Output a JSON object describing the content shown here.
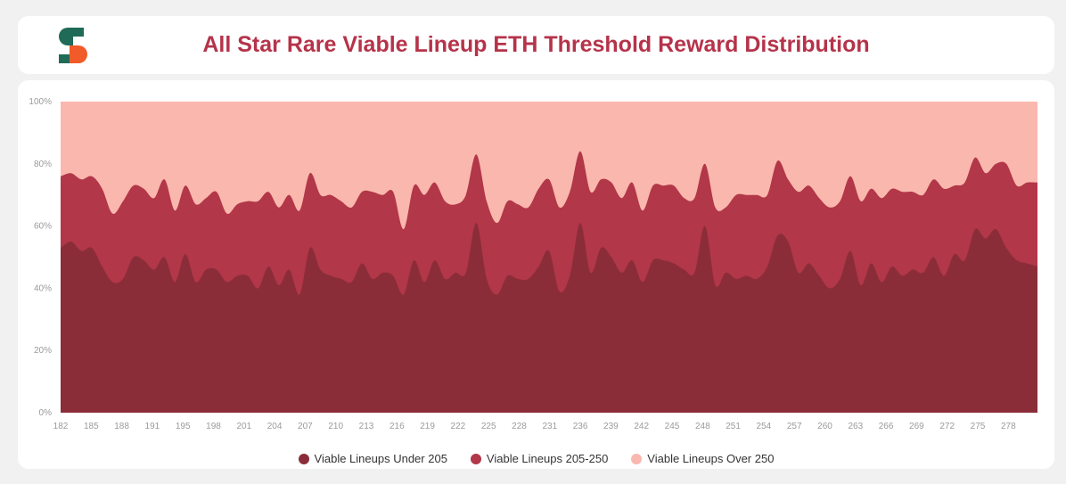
{
  "header": {
    "title": "All Star Rare Viable Lineup ETH Threshold Reward Distribution"
  },
  "chart_data": {
    "type": "area",
    "stacked": true,
    "title": "All Star Rare Viable Lineup ETH Threshold Reward Distribution",
    "xlabel": "",
    "ylabel": "",
    "ylim": [
      0,
      100
    ],
    "y_ticks": [
      "0%",
      "20%",
      "40%",
      "60%",
      "80%",
      "100%"
    ],
    "x_tick_labels": [
      "182",
      "185",
      "188",
      "191",
      "195",
      "198",
      "201",
      "204",
      "207",
      "210",
      "213",
      "216",
      "219",
      "222",
      "225",
      "228",
      "231",
      "236",
      "239",
      "242",
      "245",
      "248",
      "251",
      "254",
      "257",
      "260",
      "263",
      "266",
      "269",
      "272",
      "275",
      "278"
    ],
    "grid": false,
    "legend_position": "bottom",
    "series": [
      {
        "name": "Viable Lineups Under 205",
        "color": "#8b2d39",
        "values": [
          53,
          55,
          52,
          53,
          47,
          42,
          43,
          50,
          49,
          46,
          50,
          42,
          51,
          42,
          46,
          46,
          42,
          44,
          44,
          40,
          47,
          41,
          46,
          38,
          53,
          46,
          44,
          43,
          42,
          48,
          43,
          45,
          44,
          38,
          49,
          42,
          49,
          43,
          45,
          45,
          61,
          43,
          38,
          44,
          43,
          43,
          47,
          52,
          39,
          44,
          61,
          45,
          53,
          50,
          45,
          49,
          42,
          49,
          49,
          48,
          46,
          45,
          60,
          41,
          45,
          43,
          44,
          43,
          47,
          57,
          55,
          45,
          48,
          44,
          40,
          43,
          52,
          41,
          48,
          42,
          47,
          44,
          46,
          45,
          50,
          44,
          51,
          49,
          59,
          56,
          59,
          53,
          49,
          48,
          47
        ]
      },
      {
        "name": "Viable Lineups 205-250",
        "color": "#b23748",
        "values": [
          23,
          22,
          23,
          23,
          25,
          22,
          25,
          23,
          23,
          23,
          25,
          23,
          22,
          25,
          23,
          25,
          22,
          23,
          24,
          28,
          24,
          25,
          24,
          27,
          24,
          24,
          26,
          25,
          24,
          23,
          28,
          25,
          27,
          21,
          24,
          28,
          25,
          25,
          22,
          25,
          22,
          25,
          23,
          24,
          24,
          23,
          25,
          23,
          27,
          27,
          23,
          26,
          22,
          24,
          24,
          25,
          23,
          24,
          24,
          25,
          23,
          24,
          20,
          25,
          21,
          27,
          26,
          27,
          23,
          24,
          20,
          26,
          25,
          25,
          26,
          25,
          24,
          27,
          24,
          27,
          25,
          27,
          25,
          25,
          25,
          28,
          22,
          25,
          23,
          21,
          21,
          27,
          24,
          26,
          27
        ]
      },
      {
        "name": "Viable Lineups Over 250",
        "color": "#fab7ae",
        "values": [
          24,
          23,
          25,
          24,
          28,
          36,
          32,
          27,
          28,
          31,
          25,
          35,
          27,
          33,
          31,
          29,
          36,
          33,
          32,
          32,
          29,
          34,
          30,
          35,
          23,
          30,
          30,
          32,
          34,
          29,
          29,
          30,
          29,
          41,
          27,
          30,
          26,
          32,
          33,
          30,
          17,
          32,
          39,
          32,
          33,
          34,
          28,
          25,
          34,
          29,
          16,
          29,
          25,
          26,
          31,
          26,
          35,
          27,
          27,
          27,
          31,
          31,
          20,
          34,
          34,
          30,
          30,
          30,
          30,
          19,
          25,
          29,
          27,
          31,
          34,
          32,
          24,
          32,
          28,
          31,
          28,
          29,
          29,
          30,
          25,
          28,
          27,
          26,
          18,
          23,
          20,
          20,
          27,
          26,
          26
        ]
      }
    ]
  }
}
